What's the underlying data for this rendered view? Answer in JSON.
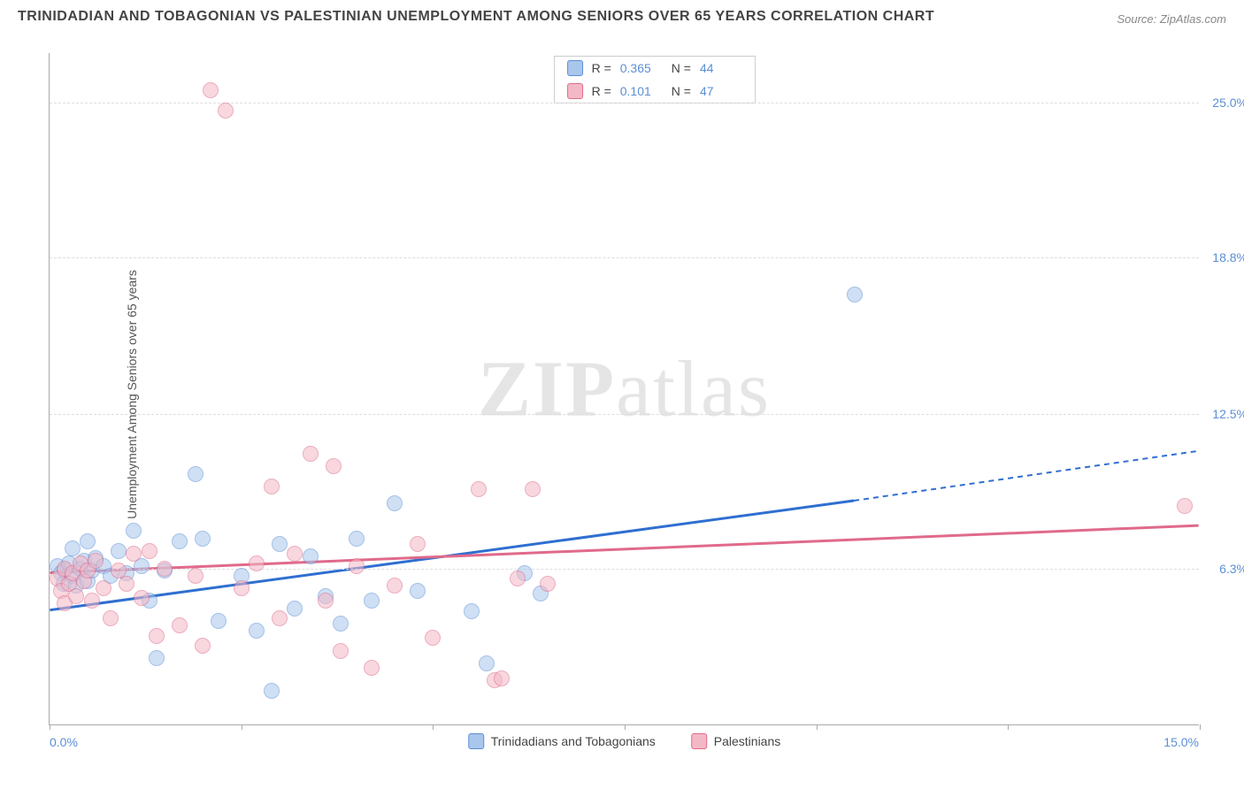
{
  "title": "TRINIDADIAN AND TOBAGONIAN VS PALESTINIAN UNEMPLOYMENT AMONG SENIORS OVER 65 YEARS CORRELATION CHART",
  "source": "Source: ZipAtlas.com",
  "yaxis_label": "Unemployment Among Seniors over 65 years",
  "watermark_a": "ZIP",
  "watermark_b": "atlas",
  "chart": {
    "type": "scatter",
    "xlim": [
      0,
      15
    ],
    "ylim": [
      0,
      27
    ],
    "xtick_positions": [
      0,
      2.5,
      5,
      7.5,
      10,
      12.5,
      15
    ],
    "xtick_labels_shown": {
      "left": "0.0%",
      "right": "15.0%"
    },
    "ytick_positions": [
      6.3,
      12.5,
      18.8,
      25.0
    ],
    "ytick_labels": [
      "6.3%",
      "12.5%",
      "18.8%",
      "25.0%"
    ],
    "background_color": "#ffffff",
    "grid_color": "#dddddd",
    "marker_radius": 9,
    "marker_opacity": 0.55,
    "series": [
      {
        "name": "Trinidadians and Tobagonians",
        "color_fill": "#a9c6ec",
        "color_stroke": "#5b8fd6",
        "r": "0.365",
        "n": "44",
        "trend": {
          "x1": 0,
          "y1": 4.6,
          "x2": 10.5,
          "y2": 9.0,
          "color": "#2f6fd0",
          "width": 3,
          "dash_extend_to_x": 15,
          "dash_extend_to_y": 11.0
        },
        "points": [
          [
            0.1,
            6.4
          ],
          [
            0.15,
            6.1
          ],
          [
            0.18,
            5.7
          ],
          [
            0.2,
            6.2
          ],
          [
            0.25,
            6.5
          ],
          [
            0.3,
            7.1
          ],
          [
            0.3,
            6.0
          ],
          [
            0.35,
            5.6
          ],
          [
            0.4,
            6.3
          ],
          [
            0.45,
            6.6
          ],
          [
            0.5,
            7.4
          ],
          [
            0.5,
            5.8
          ],
          [
            0.55,
            6.2
          ],
          [
            0.6,
            6.7
          ],
          [
            0.7,
            6.4
          ],
          [
            0.8,
            6.0
          ],
          [
            0.9,
            7.0
          ],
          [
            1.0,
            6.1
          ],
          [
            1.1,
            7.8
          ],
          [
            1.2,
            6.4
          ],
          [
            1.3,
            5.0
          ],
          [
            1.4,
            2.7
          ],
          [
            1.5,
            6.2
          ],
          [
            1.7,
            7.4
          ],
          [
            1.9,
            10.1
          ],
          [
            2.0,
            7.5
          ],
          [
            2.2,
            4.2
          ],
          [
            2.5,
            6.0
          ],
          [
            2.7,
            3.8
          ],
          [
            2.9,
            1.4
          ],
          [
            3.0,
            7.3
          ],
          [
            3.2,
            4.7
          ],
          [
            3.4,
            6.8
          ],
          [
            3.6,
            5.2
          ],
          [
            3.8,
            4.1
          ],
          [
            4.0,
            7.5
          ],
          [
            4.2,
            5.0
          ],
          [
            4.5,
            8.9
          ],
          [
            4.8,
            5.4
          ],
          [
            5.5,
            4.6
          ],
          [
            5.7,
            2.5
          ],
          [
            6.2,
            6.1
          ],
          [
            6.4,
            5.3
          ],
          [
            10.5,
            17.3
          ]
        ]
      },
      {
        "name": "Palestinians",
        "color_fill": "#f3b8c6",
        "color_stroke": "#e06a8a",
        "r": "0.101",
        "n": "47",
        "trend": {
          "x1": 0,
          "y1": 6.1,
          "x2": 15,
          "y2": 8.0,
          "color": "#e06a8a",
          "width": 3
        },
        "points": [
          [
            0.1,
            5.9
          ],
          [
            0.15,
            5.4
          ],
          [
            0.2,
            6.3
          ],
          [
            0.2,
            4.9
          ],
          [
            0.25,
            5.7
          ],
          [
            0.3,
            6.1
          ],
          [
            0.35,
            5.2
          ],
          [
            0.4,
            6.5
          ],
          [
            0.45,
            5.8
          ],
          [
            0.5,
            6.2
          ],
          [
            0.55,
            5.0
          ],
          [
            0.6,
            6.6
          ],
          [
            0.7,
            5.5
          ],
          [
            0.8,
            4.3
          ],
          [
            0.9,
            6.2
          ],
          [
            1.0,
            5.7
          ],
          [
            1.1,
            6.9
          ],
          [
            1.2,
            5.1
          ],
          [
            1.3,
            7.0
          ],
          [
            1.4,
            3.6
          ],
          [
            1.5,
            6.3
          ],
          [
            1.7,
            4.0
          ],
          [
            1.9,
            6.0
          ],
          [
            2.0,
            3.2
          ],
          [
            2.1,
            25.5
          ],
          [
            2.3,
            24.7
          ],
          [
            2.5,
            5.5
          ],
          [
            2.7,
            6.5
          ],
          [
            2.9,
            9.6
          ],
          [
            3.0,
            4.3
          ],
          [
            3.2,
            6.9
          ],
          [
            3.4,
            10.9
          ],
          [
            3.6,
            5.0
          ],
          [
            3.7,
            10.4
          ],
          [
            3.8,
            3.0
          ],
          [
            4.0,
            6.4
          ],
          [
            4.2,
            2.3
          ],
          [
            4.5,
            5.6
          ],
          [
            4.8,
            7.3
          ],
          [
            5.0,
            3.5
          ],
          [
            5.6,
            9.5
          ],
          [
            5.8,
            1.8
          ],
          [
            5.9,
            1.9
          ],
          [
            6.1,
            5.9
          ],
          [
            6.3,
            9.5
          ],
          [
            6.5,
            5.7
          ],
          [
            14.8,
            8.8
          ]
        ]
      }
    ]
  },
  "legend_bottom": [
    "Trinidadians and Tobagonians",
    "Palestinians"
  ]
}
